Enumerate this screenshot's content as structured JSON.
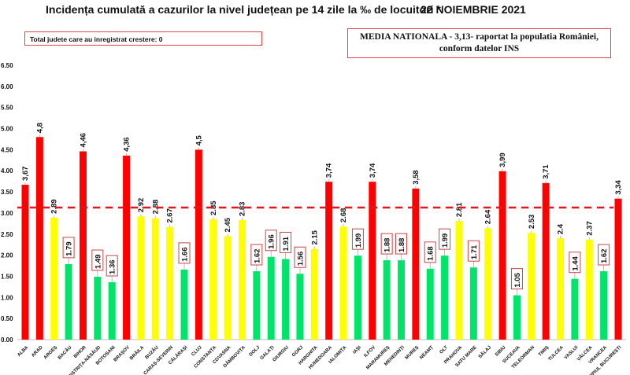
{
  "header": {
    "title": "Incidența cumulată a cazurilor la nivel județean pe 14 zile la ‰ de locuitori *",
    "date": "22 NOIEMBRIE 2021",
    "info_left": "Total judete care au inregistrat crestere: 0",
    "info_right_line1": "MEDIA NATIONALA - 3,13-  raportat la populatia  României,",
    "info_right_line2": "conform datelor INS"
  },
  "chart_data": {
    "type": "bar",
    "title": "Incidența cumulată a cazurilor la nivel județean pe 14 zile la ‰ de locuitori *",
    "xlabel": "",
    "ylabel": "",
    "ylim": [
      0,
      6.5
    ],
    "yticks": [
      "0.00",
      "0.50",
      "1.00",
      "1.50",
      "2.00",
      "2.50",
      "3.00",
      "3.50",
      "4.00",
      "4.50",
      "5.00",
      "5.50",
      "6.00",
      "6.50"
    ],
    "reference_line": {
      "value": 3.13,
      "label": "MEDIA NATIONALA - 3,13",
      "color": "#E8141B",
      "style": "dashed"
    },
    "colors": {
      "above_average": "#FF0000",
      "medium": "#FFFF00",
      "low": "#00E46A"
    },
    "categories": [
      "ALBA",
      "ARAD",
      "ARGEȘ",
      "BACĂU",
      "BIHOR",
      "BISTRIȚA-NĂSĂUD",
      "BOTOȘANI",
      "BRAȘOV",
      "BRĂILA",
      "BUZĂU",
      "CARAȘ-SEVERIN",
      "CĂLĂRAȘI",
      "CLUJ",
      "CONSTANȚA",
      "COVASNA",
      "DÂMBOVIȚA",
      "DOLJ",
      "GALAȚI",
      "GIURGIU",
      "GORJ",
      "HARGHITA",
      "HUNEDOARA",
      "IALOMIȚA",
      "IAȘI",
      "ILFOV",
      "MARAMUREȘ",
      "MEHEDINȚI",
      "MUREȘ",
      "NEAMȚ",
      "OLT",
      "PRAHOVA",
      "SATU MARE",
      "SĂLAJ",
      "SIBIU",
      "SUCEAVA",
      "TELEORMAN",
      "TIMIȘ",
      "TULCEA",
      "VASLUI",
      "VÂLCEA",
      "VRANCEA",
      "MUNICIPIUL BUCUREȘTI"
    ],
    "values": [
      3.67,
      4.8,
      2.89,
      1.79,
      4.46,
      1.49,
      1.36,
      4.36,
      2.92,
      2.88,
      2.67,
      1.66,
      4.5,
      2.85,
      2.45,
      2.83,
      1.62,
      1.96,
      1.91,
      1.56,
      2.15,
      3.74,
      2.68,
      1.99,
      3.74,
      1.88,
      1.88,
      3.58,
      1.68,
      1.99,
      2.81,
      1.71,
      2.64,
      3.99,
      1.05,
      2.53,
      3.71,
      2.4,
      1.44,
      2.37,
      1.62,
      3.34
    ],
    "labels": [
      "3,67",
      "4,8",
      "2.89",
      "1.79",
      "4,46",
      "1.49",
      "1.36",
      "4,36",
      "2.92",
      "2.88",
      "2.67",
      "1.66",
      "4,5",
      "2.85",
      "2.45",
      "2.83",
      "1.62",
      "1.96",
      "1.91",
      "1.56",
      "2.15",
      "3,74",
      "2.68",
      "1.99",
      "3,74",
      "1.88",
      "1.88",
      "3,58",
      "1.68",
      "1.99",
      "2.81",
      "1.71",
      "2.64",
      "3,99",
      "1.05",
      "2.53",
      "3,71",
      "2.4",
      "1.44",
      "2.37",
      "1.62",
      "3,34"
    ],
    "bar_colors": [
      "red",
      "red",
      "yellow",
      "green",
      "red",
      "green",
      "green",
      "red",
      "yellow",
      "yellow",
      "yellow",
      "green",
      "red",
      "yellow",
      "yellow",
      "yellow",
      "green",
      "green",
      "green",
      "green",
      "yellow",
      "red",
      "yellow",
      "green",
      "red",
      "green",
      "green",
      "red",
      "green",
      "green",
      "yellow",
      "green",
      "yellow",
      "red",
      "green",
      "yellow",
      "red",
      "yellow",
      "green",
      "yellow",
      "green",
      "red"
    ],
    "grid": false,
    "legend": "none"
  }
}
